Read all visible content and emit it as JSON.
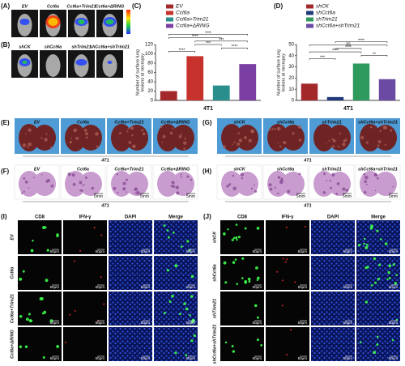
{
  "panel_labels": {
    "A": "(A)",
    "B": "(B)",
    "C": "(C)",
    "D": "(D)",
    "E": "(E)",
    "F": "(F)",
    "G": "(G)",
    "H": "(H)",
    "I": "(I)",
    "J": "(J)"
  },
  "groups_oe": [
    "EV",
    "Cct6a",
    "Cct6a+Trim21",
    "Cct6a+ΔRING"
  ],
  "groups_kd": [
    "shCK",
    "shCct6a",
    "shTrim21",
    "shCct6a+shTrim21"
  ],
  "cell_line": "4T1",
  "stains": [
    "CD8",
    "IFN-γ",
    "DAPI",
    "Merge"
  ],
  "scale_mm": "5mm",
  "scale_um": "50μm",
  "chart_data": [
    {
      "type": "bar",
      "categories": [
        "EV",
        "Cct6a",
        "Cct6a+Trim21",
        "Cct6a+ΔRING"
      ],
      "values": [
        20,
        95,
        32,
        78
      ],
      "colors": [
        "#a3282a",
        "#c8322c",
        "#2a8f8c",
        "#7b3fa3"
      ],
      "ylabel": [
        "Number of surface lung",
        "lesions at necropsy"
      ],
      "xlabel": "4T1",
      "ylim": [
        0,
        120
      ],
      "yticks": [
        0,
        20,
        40,
        60,
        80,
        100,
        120
      ],
      "comparisons": [
        {
          "from": 0,
          "to": 1,
          "label": "****"
        },
        {
          "from": 2,
          "to": 3,
          "label": "****"
        },
        {
          "from": 1,
          "to": 2,
          "label": "***"
        },
        {
          "from": 1,
          "to": 3,
          "label": "***"
        },
        {
          "from": 0,
          "to": 2,
          "label": "****"
        },
        {
          "from": 0,
          "to": 3,
          "label": "****"
        }
      ]
    },
    {
      "type": "bar",
      "categories": [
        "shCK",
        "shCct6a",
        "shTrim21",
        "shCct6a+shTrim21"
      ],
      "values": [
        15,
        3,
        33,
        19
      ],
      "colors": [
        "#a3282a",
        "#1f3a7a",
        "#2e9a5e",
        "#6a4aa3"
      ],
      "ylabel": [
        "Number of surface lung",
        "lesions at necropsy"
      ],
      "xlabel": "4T1",
      "ylim": [
        0,
        50
      ],
      "yticks": [
        0,
        10,
        20,
        30,
        40,
        50
      ],
      "comparisons": [
        {
          "from": 0,
          "to": 1,
          "label": "***"
        },
        {
          "from": 2,
          "to": 3,
          "label": "**"
        },
        {
          "from": 0,
          "to": 2,
          "label": "****"
        },
        {
          "from": 1,
          "to": 2,
          "label": "****"
        },
        {
          "from": 0,
          "to": 3,
          "label": "ns"
        },
        {
          "from": 1,
          "to": 3,
          "label": "****"
        }
      ]
    }
  ]
}
